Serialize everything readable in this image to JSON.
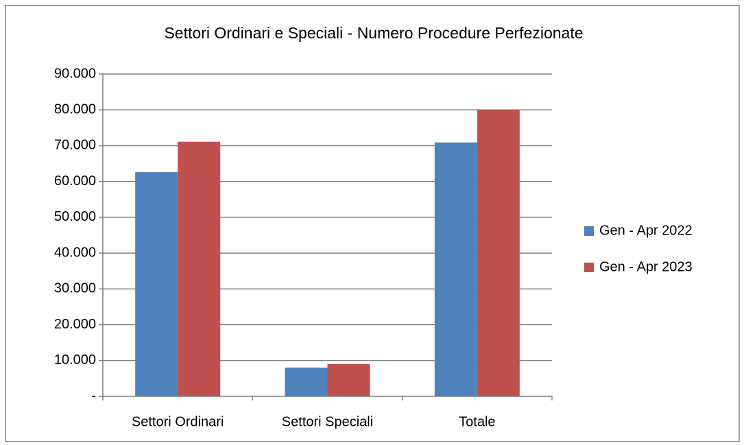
{
  "chart_data": {
    "type": "bar",
    "title": "Settori Ordinari e Speciali - Numero Procedure Perfezionate",
    "categories": [
      "Settori Ordinari",
      "Settori Speciali",
      "Totale"
    ],
    "series": [
      {
        "name": "Gen - Apr 2022",
        "color": "#4f81bd",
        "values": [
          62600,
          8000,
          70900
        ]
      },
      {
        "name": "Gen - Apr 2023",
        "color": "#c0504d",
        "values": [
          71100,
          9000,
          80100
        ]
      }
    ],
    "ylim": [
      0,
      90000
    ],
    "yticks": [
      {
        "value": 0,
        "label": "-"
      },
      {
        "value": 10000,
        "label": "10.000"
      },
      {
        "value": 20000,
        "label": "20.000"
      },
      {
        "value": 30000,
        "label": "30.000"
      },
      {
        "value": 40000,
        "label": "40.000"
      },
      {
        "value": 50000,
        "label": "50.000"
      },
      {
        "value": 60000,
        "label": "60.000"
      },
      {
        "value": 70000,
        "label": "70.000"
      },
      {
        "value": 80000,
        "label": "80.000"
      },
      {
        "value": 90000,
        "label": "90.000"
      }
    ],
    "grid": true,
    "legend": "right"
  }
}
